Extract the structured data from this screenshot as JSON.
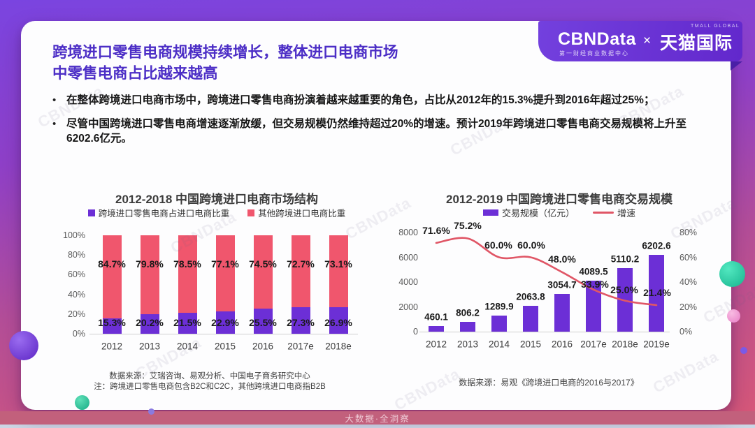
{
  "page": {
    "title_line1": "跨境进口零售电商规模持续增长，整体进口电商市场",
    "title_line2": "中零售电商占比越来越高",
    "bullets": [
      "在整体跨境进口电商市场中，跨境进口零售电商扮演着越来越重要的角色，占比从2012年的15.3%提升到2016年超过25%；",
      "尽管中国跨境进口零售电商增速逐渐放缓，但交易规模仍然维持超过20%的增速。预计2019年跨境进口零售电商交易规模将上升至6202.6亿元。"
    ],
    "footer_text": "大数据·全洞察",
    "watermark_text": "CBNData"
  },
  "logo": {
    "cbndata": "CBNData",
    "cbndata_sub": "第一财经商业数据中心",
    "cross": "×",
    "tmall": "天猫国际",
    "tmall_sub": "TMALL GLOBAL"
  },
  "colors": {
    "accent_purple": "#4c2ec6",
    "bar_purple": "#6c2fd6",
    "bar_red": "#f0566d",
    "line_red": "#e05666",
    "frame_top": "#7a44e0",
    "frame_bottom": "#d85877",
    "footer_bar": "#c2607c"
  },
  "chart_data": [
    {
      "type": "bar",
      "stacked": true,
      "title": "2012-2018 中国跨境进口电商市场结构",
      "categories": [
        "2012",
        "2013",
        "2014",
        "2015",
        "2016",
        "2017e",
        "2018e"
      ],
      "series": [
        {
          "name": "跨境进口零售电商占进口电商比重",
          "color": "#6c2fd6",
          "values": [
            15.3,
            20.2,
            21.5,
            22.9,
            25.5,
            27.3,
            26.9
          ]
        },
        {
          "name": "其他跨境进口电商比重",
          "color": "#f0566d",
          "values": [
            84.7,
            79.8,
            78.5,
            77.1,
            74.5,
            72.7,
            73.1
          ]
        }
      ],
      "ylabel": "",
      "ylim": [
        0,
        100
      ],
      "yticks": [
        "0%",
        "20%",
        "40%",
        "60%",
        "80%",
        "100%"
      ],
      "grid": false,
      "legend_position": "top",
      "source_line1": "数据来源：艾瑞咨询、易观分析、中国电子商务研究中心",
      "source_line2": "注：跨境进口零售电商包含B2C和C2C，其他跨境进口电商指B2B"
    },
    {
      "type": "bar+line",
      "title": "2012-2019 中国跨境进口零售电商交易规模",
      "categories": [
        "2012",
        "2013",
        "2014",
        "2015",
        "2016",
        "2017e",
        "2018e",
        "2019e"
      ],
      "bar_series": {
        "name": "交易规模（亿元）",
        "color": "#6c2fd6",
        "values": [
          460.1,
          806.2,
          1289.9,
          2063.8,
          3054.7,
          4089.5,
          5110.2,
          6202.6
        ]
      },
      "line_series": {
        "name": "增速",
        "color": "#e05666",
        "values": [
          71.6,
          75.2,
          60.0,
          60.0,
          48.0,
          33.9,
          25.0,
          21.4
        ],
        "labels": [
          "71.6%",
          "75.2%",
          "60.0%",
          "60.0%",
          "48.0%",
          "33.9%",
          "25.0%",
          "21.4%"
        ]
      },
      "ylim_left": [
        0,
        8000
      ],
      "yticks_left": [
        "0",
        "2000",
        "4000",
        "6000",
        "8000"
      ],
      "ylim_right": [
        0,
        80
      ],
      "yticks_right": [
        "0%",
        "20%",
        "40%",
        "60%",
        "80%"
      ],
      "grid": false,
      "legend_position": "top",
      "source": "数据来源：易观《跨境进口电商的2016与2017》"
    }
  ]
}
